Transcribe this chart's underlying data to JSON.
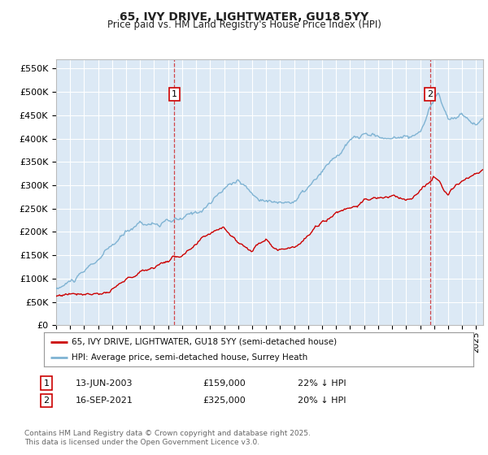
{
  "title": "65, IVY DRIVE, LIGHTWATER, GU18 5YY",
  "subtitle": "Price paid vs. HM Land Registry's House Price Index (HPI)",
  "background_color": "#ffffff",
  "plot_bg_color": "#dce9f5",
  "grid_color": "#ffffff",
  "red_line_color": "#cc0000",
  "blue_line_color": "#7fb3d3",
  "ylim": [
    0,
    570000
  ],
  "yticks": [
    0,
    50000,
    100000,
    150000,
    200000,
    250000,
    300000,
    350000,
    400000,
    450000,
    500000,
    550000
  ],
  "ytick_labels": [
    "£0",
    "£50K",
    "£100K",
    "£150K",
    "£200K",
    "£250K",
    "£300K",
    "£350K",
    "£400K",
    "£450K",
    "£500K",
    "£550K"
  ],
  "sale1_year": 2003.44,
  "sale1_price": 159000,
  "sale2_year": 2021.71,
  "sale2_price": 325000,
  "legend_red": "65, IVY DRIVE, LIGHTWATER, GU18 5YY (semi-detached house)",
  "legend_blue": "HPI: Average price, semi-detached house, Surrey Heath",
  "footer": "Contains HM Land Registry data © Crown copyright and database right 2025.\nThis data is licensed under the Open Government Licence v3.0.",
  "xstart": 1995.0,
  "xend": 2025.5
}
